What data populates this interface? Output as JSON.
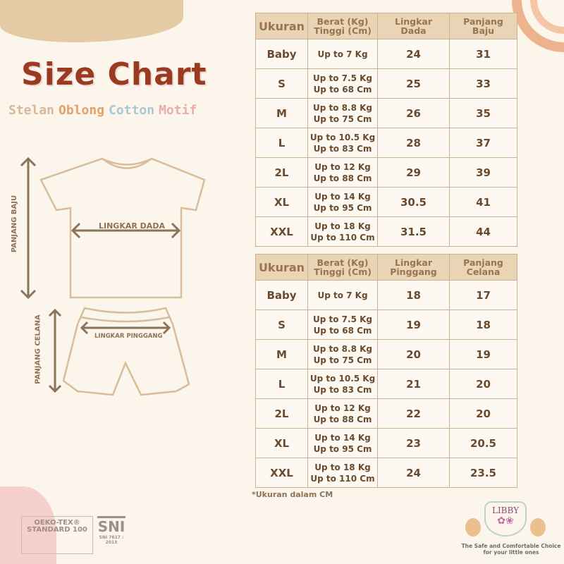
{
  "header": {
    "title": "Size Chart",
    "subtitle": [
      {
        "text": "Stelan",
        "color": "#d6b998"
      },
      {
        "text": "Oblong",
        "color": "#e3a269"
      },
      {
        "text": "Cotton",
        "color": "#a9c6d4"
      },
      {
        "text": "Motif",
        "color": "#eaadaa"
      }
    ]
  },
  "diagram": {
    "panjang_baju": "PANJANG BAJU",
    "lingkar_dada": "LINGKAR DADA",
    "panjang_celana": "PANJANG CELANA",
    "lingkar_pinggang": "LINGKAR PINGGANG"
  },
  "top_table": {
    "headers": [
      "Ukuran",
      "Berat (Kg)\nTinggi (Cm)",
      "Lingkar\nDada",
      "Panjang\nBaju"
    ],
    "rows": [
      [
        "Baby",
        "Up to 7 Kg",
        "24",
        "31"
      ],
      [
        "S",
        "Up to 7.5 Kg\nUp to 68 Cm",
        "25",
        "33"
      ],
      [
        "M",
        "Up to 8.8 Kg\nUp to 75 Cm",
        "26",
        "35"
      ],
      [
        "L",
        "Up to 10.5 Kg\nUp to 83 Cm",
        "28",
        "37"
      ],
      [
        "2L",
        "Up to 12 Kg\nUp to 88 Cm",
        "29",
        "39"
      ],
      [
        "XL",
        "Up to 14 Kg\nUp to 95 Cm",
        "30.5",
        "41"
      ],
      [
        "XXL",
        "Up to 18 Kg\nUp to 110 Cm",
        "31.5",
        "44"
      ]
    ]
  },
  "bottom_table": {
    "headers": [
      "Ukuran",
      "Berat (Kg)\nTinggi (Cm)",
      "Lingkar\nPinggang",
      "Panjang\nCelana"
    ],
    "rows": [
      [
        "Baby",
        "Up to 7 Kg",
        "18",
        "17"
      ],
      [
        "S",
        "Up to 7.5 Kg\nUp to 68 Cm",
        "19",
        "18"
      ],
      [
        "M",
        "Up to 8.8 Kg\nUp to 75 Cm",
        "20",
        "19"
      ],
      [
        "L",
        "Up to 10.5 Kg\nUp to 83 Cm",
        "21",
        "20"
      ],
      [
        "2L",
        "Up to 12 Kg\nUp to 88 Cm",
        "22",
        "20"
      ],
      [
        "XL",
        "Up to 14 Kg\nUp to 95 Cm",
        "23",
        "20.5"
      ],
      [
        "XXL",
        "Up to 18 Kg\nUp to 110 Cm",
        "24",
        "23.5"
      ]
    ]
  },
  "note": "*Ukuran dalam CM",
  "logos": {
    "oekotex": "OEKO-TEX® STANDARD 100",
    "sni": "SNI",
    "sni_sub": "SNI 7617 : 2013",
    "libby": "LIBBY"
  },
  "tagline": "The Safe and Comfortable Choice for your little ones"
}
